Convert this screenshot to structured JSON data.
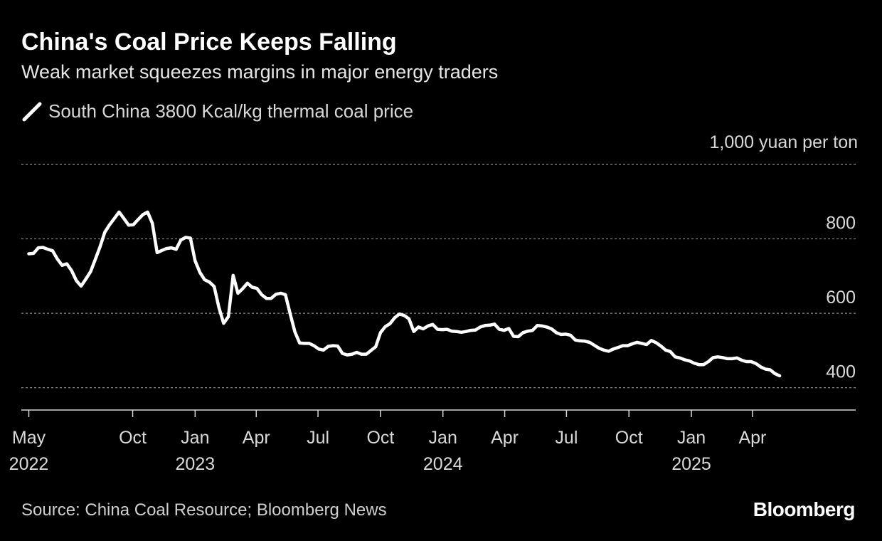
{
  "header": {
    "title": "China's Coal Price Keeps Falling",
    "subtitle": "Weak market squeezes margins in major energy traders"
  },
  "footer": {
    "source": "Source: China Coal Resource; Bloomberg News",
    "brand": "Bloomberg"
  },
  "colors": {
    "background": "#000000",
    "line": "#ffffff",
    "grid": "#8c8c8c",
    "text": "#d9d9d9"
  },
  "chart_data": {
    "type": "line",
    "title": "China's Coal Price Keeps Falling",
    "subtitle": "Weak market squeezes margins in major energy traders",
    "unit_label": "1,000 yuan per ton",
    "ylim": [
      340,
      1000
    ],
    "y_ticks": [
      {
        "value": 1000,
        "label": ""
      },
      {
        "value": 800,
        "label": "800"
      },
      {
        "value": 600,
        "label": "600"
      },
      {
        "value": 400,
        "label": "400"
      }
    ],
    "x_ticks": [
      {
        "x": "2022-05",
        "label": "May",
        "year": "2022"
      },
      {
        "x": "2022-10",
        "label": "Oct",
        "year": ""
      },
      {
        "x": "2023-01",
        "label": "Jan",
        "year": "2023"
      },
      {
        "x": "2023-04",
        "label": "Apr",
        "year": ""
      },
      {
        "x": "2023-07",
        "label": "Jul",
        "year": ""
      },
      {
        "x": "2023-10",
        "label": "Oct",
        "year": ""
      },
      {
        "x": "2024-01",
        "label": "Jan",
        "year": "2024"
      },
      {
        "x": "2024-04",
        "label": "Apr",
        "year": ""
      },
      {
        "x": "2024-07",
        "label": "Jul",
        "year": ""
      },
      {
        "x": "2024-10",
        "label": "Oct",
        "year": ""
      },
      {
        "x": "2025-01",
        "label": "Jan",
        "year": "2025"
      },
      {
        "x": "2025-04",
        "label": "Apr",
        "year": ""
      }
    ],
    "xlim": [
      "2022-04-20",
      "2025-08-31"
    ],
    "grid": true,
    "legend_position": "top-left",
    "series": [
      {
        "name": "South China 3800 Kcal/kg thermal coal price",
        "color": "#ffffff",
        "points": [
          [
            "2022-05-01",
            760
          ],
          [
            "2022-05-08",
            761
          ],
          [
            "2022-05-15",
            776
          ],
          [
            "2022-05-22",
            777
          ],
          [
            "2022-05-29",
            772
          ],
          [
            "2022-06-05",
            768
          ],
          [
            "2022-06-12",
            746
          ],
          [
            "2022-06-19",
            729
          ],
          [
            "2022-06-26",
            733
          ],
          [
            "2022-07-03",
            715
          ],
          [
            "2022-07-10",
            688
          ],
          [
            "2022-07-17",
            673
          ],
          [
            "2022-07-24",
            692
          ],
          [
            "2022-07-31",
            712
          ],
          [
            "2022-08-07",
            745
          ],
          [
            "2022-08-14",
            779
          ],
          [
            "2022-08-21",
            818
          ],
          [
            "2022-08-28",
            838
          ],
          [
            "2022-09-04",
            855
          ],
          [
            "2022-09-11",
            872
          ],
          [
            "2022-09-18",
            855
          ],
          [
            "2022-09-25",
            837
          ],
          [
            "2022-10-02",
            838
          ],
          [
            "2022-10-09",
            852
          ],
          [
            "2022-10-16",
            865
          ],
          [
            "2022-10-23",
            872
          ],
          [
            "2022-10-30",
            842
          ],
          [
            "2022-11-06",
            763
          ],
          [
            "2022-11-13",
            769
          ],
          [
            "2022-11-20",
            774
          ],
          [
            "2022-11-27",
            776
          ],
          [
            "2022-12-04",
            772
          ],
          [
            "2022-12-11",
            797
          ],
          [
            "2022-12-18",
            804
          ],
          [
            "2022-12-25",
            802
          ],
          [
            "2023-01-01",
            741
          ],
          [
            "2023-01-08",
            710
          ],
          [
            "2023-01-15",
            690
          ],
          [
            "2023-01-22",
            684
          ],
          [
            "2023-01-29",
            672
          ],
          [
            "2023-02-05",
            616
          ],
          [
            "2023-02-12",
            573
          ],
          [
            "2023-02-19",
            591
          ],
          [
            "2023-02-26",
            702
          ],
          [
            "2023-03-05",
            654
          ],
          [
            "2023-03-12",
            666
          ],
          [
            "2023-03-19",
            681
          ],
          [
            "2023-03-26",
            670
          ],
          [
            "2023-04-02",
            667
          ],
          [
            "2023-04-09",
            650
          ],
          [
            "2023-04-16",
            640
          ],
          [
            "2023-04-23",
            640
          ],
          [
            "2023-04-30",
            651
          ],
          [
            "2023-05-07",
            654
          ],
          [
            "2023-05-14",
            650
          ],
          [
            "2023-05-21",
            598
          ],
          [
            "2023-05-28",
            550
          ],
          [
            "2023-06-04",
            520
          ],
          [
            "2023-06-11",
            519
          ],
          [
            "2023-06-18",
            519
          ],
          [
            "2023-06-25",
            513
          ],
          [
            "2023-07-02",
            504
          ],
          [
            "2023-07-09",
            501
          ],
          [
            "2023-07-16",
            511
          ],
          [
            "2023-07-23",
            513
          ],
          [
            "2023-07-30",
            512
          ],
          [
            "2023-08-06",
            492
          ],
          [
            "2023-08-13",
            488
          ],
          [
            "2023-08-20",
            490
          ],
          [
            "2023-08-27",
            495
          ],
          [
            "2023-09-03",
            490
          ],
          [
            "2023-09-10",
            490
          ],
          [
            "2023-09-17",
            500
          ],
          [
            "2023-09-24",
            510
          ],
          [
            "2023-10-01",
            548
          ],
          [
            "2023-10-08",
            564
          ],
          [
            "2023-10-15",
            572
          ],
          [
            "2023-10-22",
            588
          ],
          [
            "2023-10-29",
            598
          ],
          [
            "2023-11-05",
            594
          ],
          [
            "2023-11-12",
            585
          ],
          [
            "2023-11-19",
            551
          ],
          [
            "2023-11-26",
            563
          ],
          [
            "2023-12-03",
            558
          ],
          [
            "2023-12-10",
            566
          ],
          [
            "2023-12-17",
            570
          ],
          [
            "2023-12-24",
            557
          ],
          [
            "2023-12-31",
            556
          ],
          [
            "2024-01-07",
            557
          ],
          [
            "2024-01-14",
            552
          ],
          [
            "2024-01-21",
            551
          ],
          [
            "2024-01-28",
            549
          ],
          [
            "2024-02-04",
            551
          ],
          [
            "2024-02-11",
            554
          ],
          [
            "2024-02-18",
            555
          ],
          [
            "2024-02-25",
            563
          ],
          [
            "2024-03-03",
            567
          ],
          [
            "2024-03-10",
            568
          ],
          [
            "2024-03-17",
            571
          ],
          [
            "2024-03-24",
            557
          ],
          [
            "2024-03-31",
            554
          ],
          [
            "2024-04-07",
            559
          ],
          [
            "2024-04-14",
            538
          ],
          [
            "2024-04-21",
            537
          ],
          [
            "2024-04-28",
            548
          ],
          [
            "2024-05-05",
            552
          ],
          [
            "2024-05-12",
            554
          ],
          [
            "2024-05-19",
            567
          ],
          [
            "2024-05-26",
            566
          ],
          [
            "2024-06-02",
            563
          ],
          [
            "2024-06-09",
            558
          ],
          [
            "2024-06-16",
            548
          ],
          [
            "2024-06-23",
            543
          ],
          [
            "2024-06-30",
            544
          ],
          [
            "2024-07-07",
            541
          ],
          [
            "2024-07-14",
            528
          ],
          [
            "2024-07-21",
            526
          ],
          [
            "2024-07-28",
            525
          ],
          [
            "2024-08-04",
            522
          ],
          [
            "2024-08-11",
            514
          ],
          [
            "2024-08-18",
            506
          ],
          [
            "2024-08-25",
            501
          ],
          [
            "2024-09-01",
            498
          ],
          [
            "2024-09-08",
            504
          ],
          [
            "2024-09-15",
            508
          ],
          [
            "2024-09-22",
            513
          ],
          [
            "2024-09-29",
            513
          ],
          [
            "2024-10-06",
            518
          ],
          [
            "2024-10-13",
            522
          ],
          [
            "2024-10-20",
            519
          ],
          [
            "2024-10-27",
            516
          ],
          [
            "2024-11-03",
            527
          ],
          [
            "2024-11-10",
            521
          ],
          [
            "2024-11-17",
            512
          ],
          [
            "2024-11-24",
            501
          ],
          [
            "2024-12-01",
            497
          ],
          [
            "2024-12-08",
            483
          ],
          [
            "2024-12-15",
            480
          ],
          [
            "2024-12-22",
            475
          ],
          [
            "2024-12-29",
            472
          ],
          [
            "2025-01-05",
            466
          ],
          [
            "2025-01-12",
            462
          ],
          [
            "2025-01-19",
            462
          ],
          [
            "2025-01-26",
            470
          ],
          [
            "2025-02-02",
            481
          ],
          [
            "2025-02-09",
            483
          ],
          [
            "2025-02-16",
            481
          ],
          [
            "2025-02-23",
            478
          ],
          [
            "2025-03-02",
            478
          ],
          [
            "2025-03-09",
            480
          ],
          [
            "2025-03-16",
            474
          ],
          [
            "2025-03-23",
            470
          ],
          [
            "2025-03-30",
            470
          ],
          [
            "2025-04-06",
            465
          ],
          [
            "2025-04-13",
            456
          ],
          [
            "2025-04-20",
            450
          ],
          [
            "2025-04-27",
            448
          ],
          [
            "2025-05-04",
            438
          ],
          [
            "2025-05-11",
            432
          ]
        ]
      }
    ]
  }
}
